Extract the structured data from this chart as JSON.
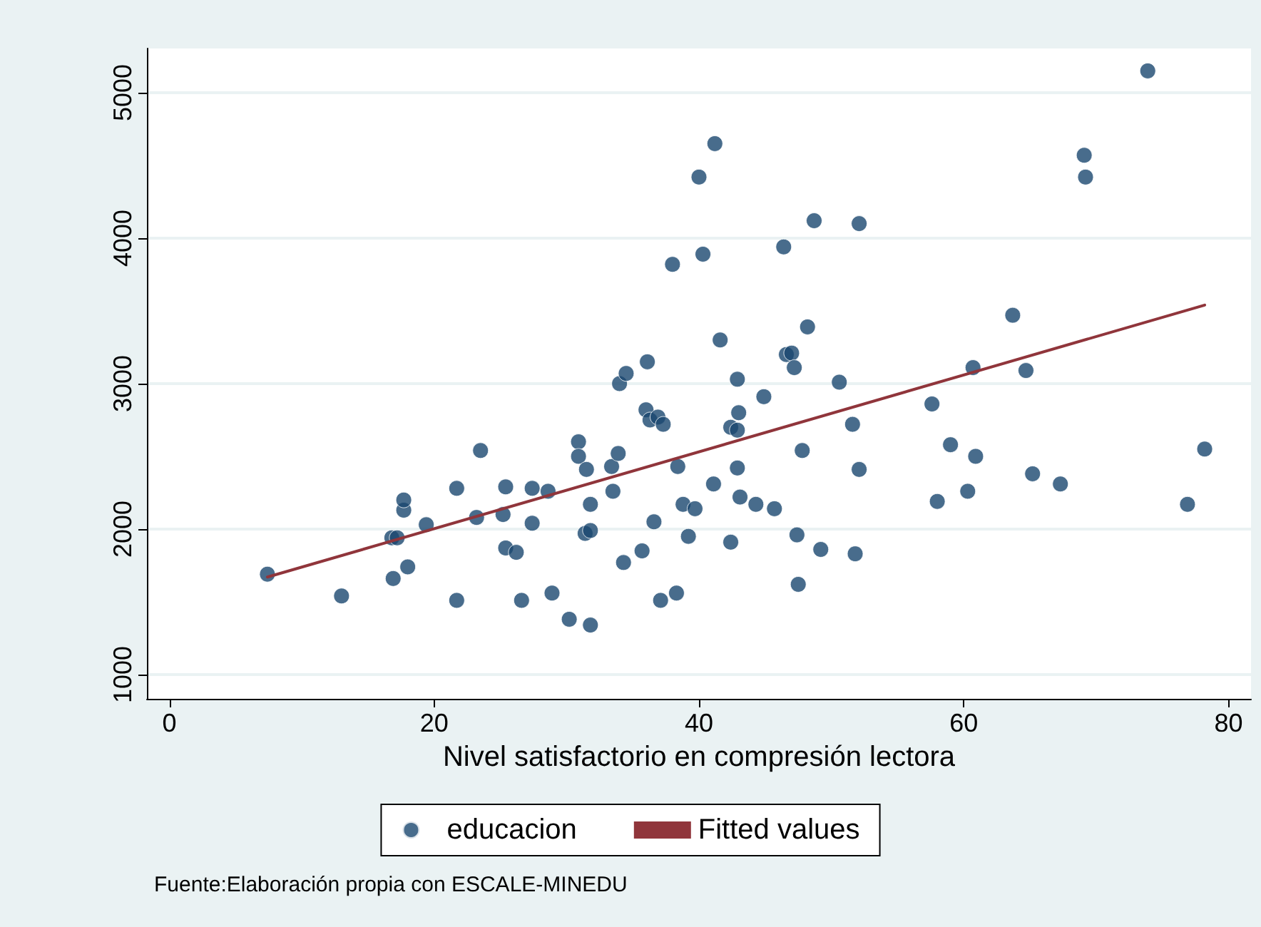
{
  "chart_data": {
    "type": "scatter",
    "xlabel": "Nivel satisfactorio en compresión lectora",
    "xlim": [
      -1.7,
      81.7
    ],
    "xticks": [
      0,
      20,
      40,
      60,
      80
    ],
    "ylim": [
      833,
      5304
    ],
    "yticks": [
      1000,
      2000,
      3000,
      4000,
      5000
    ],
    "grid": "y",
    "legend": "bottom",
    "annotations": [
      "Fuente:Elaboración propia con ESCALE-MINEDU"
    ],
    "series": [
      {
        "name": "educacion",
        "marker": "circle",
        "color": "#1a476f",
        "x": [
          7.4,
          13.0,
          16.8,
          17.2,
          16.9,
          17.7,
          17.7,
          18.0,
          19.4,
          21.7,
          21.7,
          23.2,
          23.5,
          25.2,
          25.4,
          25.4,
          26.2,
          26.6,
          27.4,
          27.4,
          28.6,
          28.9,
          30.2,
          30.9,
          30.9,
          31.5,
          31.4,
          31.8,
          31.8,
          31.8,
          33.4,
          33.5,
          33.9,
          34.0,
          34.5,
          34.3,
          35.7,
          36.0,
          36.1,
          36.3,
          36.6,
          36.9,
          37.3,
          37.1,
          38.0,
          38.4,
          38.3,
          38.8,
          39.2,
          39.7,
          40.0,
          40.3,
          41.2,
          41.1,
          41.6,
          42.4,
          42.4,
          42.9,
          43.0,
          42.9,
          42.9,
          43.1,
          44.3,
          44.9,
          45.7,
          46.4,
          46.6,
          47.0,
          47.2,
          47.4,
          47.5,
          47.8,
          48.2,
          48.7,
          49.2,
          50.6,
          51.6,
          51.8,
          52.1,
          52.1,
          57.6,
          58.0,
          59.0,
          60.3,
          60.7,
          60.9,
          63.7,
          64.7,
          65.2,
          67.3,
          69.1,
          69.2,
          73.9,
          76.9,
          78.2
        ],
        "values": [
          1690,
          1540,
          1940,
          1940,
          1660,
          2130,
          2200,
          1740,
          2030,
          2280,
          1510,
          2080,
          2540,
          2100,
          2290,
          1870,
          1840,
          1510,
          2280,
          2040,
          2260,
          1560,
          1380,
          2600,
          2500,
          2410,
          1970,
          1990,
          2170,
          1340,
          2430,
          2260,
          2520,
          3000,
          3070,
          1770,
          1850,
          2820,
          3150,
          2750,
          2050,
          2770,
          2720,
          1510,
          3820,
          2430,
          1560,
          2170,
          1950,
          2140,
          4420,
          3890,
          4650,
          2310,
          3300,
          1910,
          2700,
          3030,
          2800,
          2680,
          2420,
          2220,
          2170,
          2910,
          2140,
          3940,
          3200,
          3210,
          3110,
          1960,
          1620,
          2540,
          3390,
          4120,
          1860,
          3010,
          2720,
          1830,
          4100,
          2410,
          2860,
          2190,
          2580,
          2260,
          3110,
          2500,
          3470,
          3090,
          2380,
          2310,
          4570,
          4420,
          5150,
          2170,
          2550
        ]
      },
      {
        "name": "Fitted values",
        "type": "line",
        "marker": "none",
        "line_style": "solid",
        "color": "#90353b",
        "x": [
          7.4,
          78.2
        ],
        "values": [
          1670,
          3540
        ]
      }
    ]
  }
}
